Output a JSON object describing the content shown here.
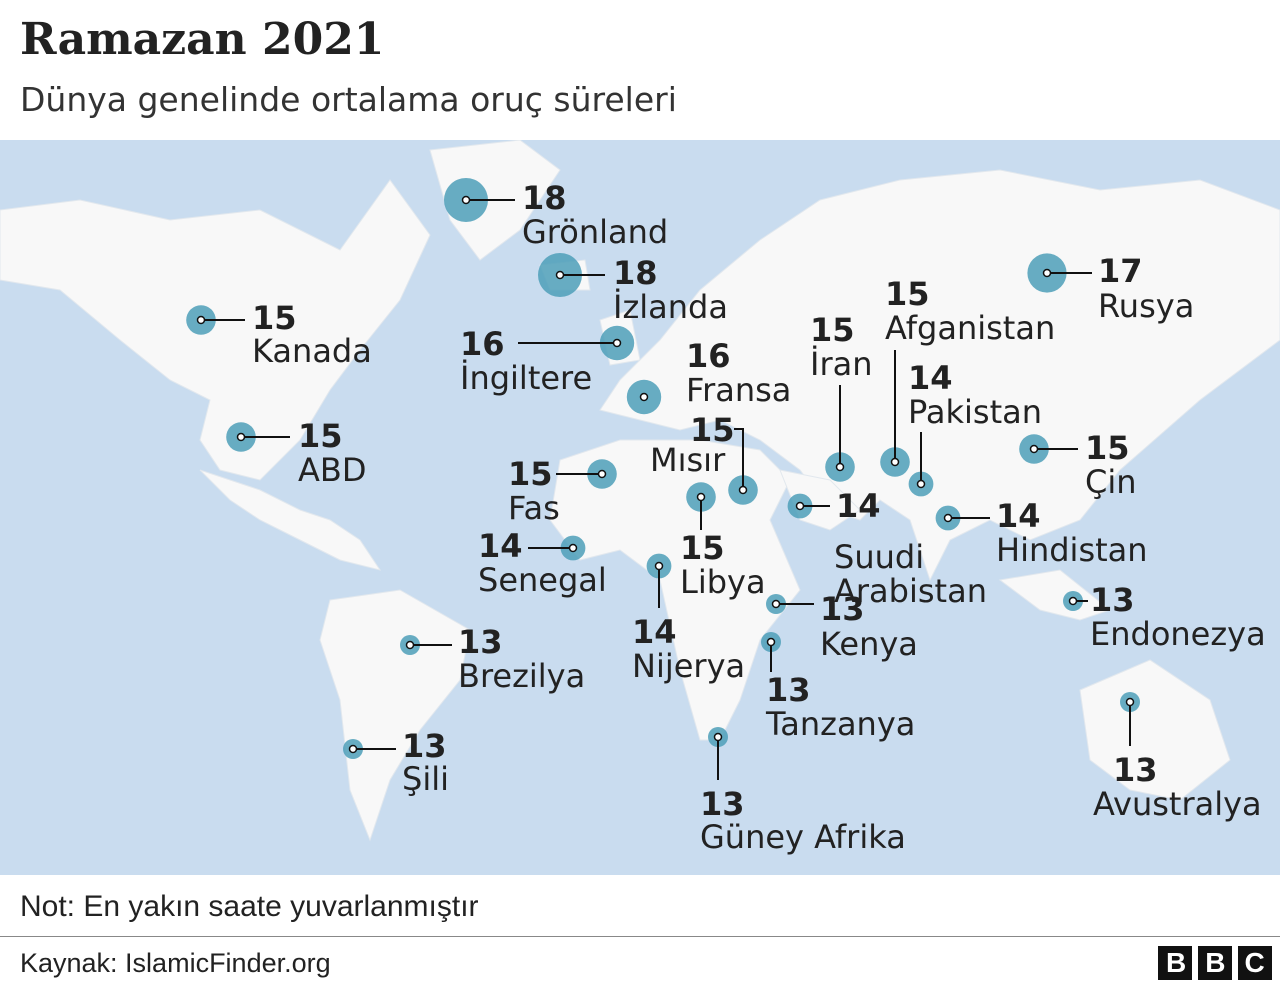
{
  "title": "Ramazan 2021",
  "subtitle": "Dünya genelinde ortalama oruç süreleri",
  "bubble_color": "#4e9fb8",
  "locations": [
    {
      "name": "Grönland",
      "value": 18
    },
    {
      "name": "İzlanda",
      "value": 18
    },
    {
      "name": "Kanada",
      "value": 15
    },
    {
      "name": "İngiltere",
      "value": 16
    },
    {
      "name": "Fransa",
      "value": 16
    },
    {
      "name": "ABD",
      "value": 15
    },
    {
      "name": "Fas",
      "value": 15
    },
    {
      "name": "Mısır",
      "value": 15
    },
    {
      "name": "Libya",
      "value": 15
    },
    {
      "name": "Senegal",
      "value": 14
    },
    {
      "name": "Nijerya",
      "value": 14
    },
    {
      "name": "İran",
      "value": 15
    },
    {
      "name": "Afganistan",
      "value": 15
    },
    {
      "name": "Pakistan",
      "value": 14
    },
    {
      "name": "Suudi Arabistan",
      "value": 14
    },
    {
      "name": "Hindistan",
      "value": 14
    },
    {
      "name": "Çin",
      "value": 15
    },
    {
      "name": "Rusya",
      "value": 17
    },
    {
      "name": "Endonezya",
      "value": 13
    },
    {
      "name": "Kenya",
      "value": 13
    },
    {
      "name": "Tanzanya",
      "value": 13
    },
    {
      "name": "Brezilya",
      "value": 13
    },
    {
      "name": "Şili",
      "value": 13
    },
    {
      "name": "Güney Afrika",
      "value": 13
    },
    {
      "name": "Avustralya",
      "value": 13
    }
  ],
  "note": "Not: En yakın saate yuvarlanmıştır",
  "source": "Kaynak: IslamicFinder.org",
  "logo": "BBC"
}
